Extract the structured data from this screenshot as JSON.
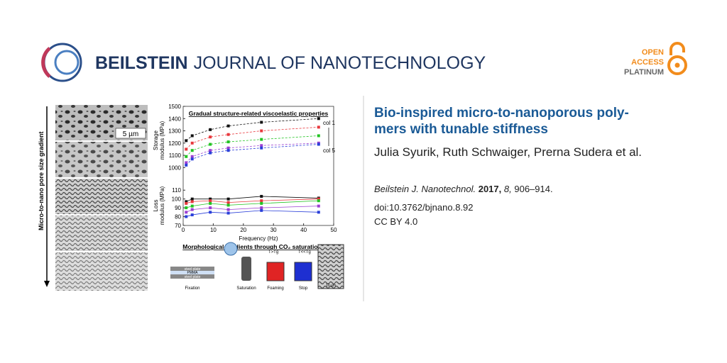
{
  "header": {
    "brand_bold": "BEILSTEIN",
    "brand_light": "JOURNAL OF NANOTECHNOLOGY",
    "badge": [
      "OPEN",
      "ACCESS",
      "PLATINUM"
    ]
  },
  "article": {
    "title_lines": [
      "Bio-inspired micro-to-nanoporous poly-",
      "mers with tunable stiffness"
    ],
    "authors": "Julia Syurik, Ruth Schwaiger, Prerna Sudera et al.",
    "citation": {
      "journal": "Beilstein J. Nanotechnol.",
      "year": "2017,",
      "volume": "8,",
      "pages": "906–914."
    },
    "doi": "doi:10.3762/bjnano.8.92",
    "license": "CC BY 4.0"
  },
  "figure": {
    "gradient_label": "Micro-to-nano pore size gradient",
    "scale_bar": "5 µm",
    "plot": {
      "title": "Gradual structure-related viscoelastic properties",
      "xlabel": "Frequency (Hz)",
      "storage_label": [
        "Storage",
        "modulus (MPa)"
      ],
      "loss_label": [
        "Loss",
        "modulus (MPa)"
      ],
      "col_first": "col 1",
      "col_last": "col 5",
      "x": [
        1,
        3,
        9,
        15,
        26,
        45
      ],
      "xlim": [
        0,
        50
      ],
      "xticks": [
        0,
        10,
        20,
        30,
        40,
        50
      ],
      "storage_ylim": [
        950,
        1500
      ],
      "storage_yticks": [
        1000,
        1100,
        1200,
        1300,
        1400,
        1500
      ],
      "loss_ylim": [
        70,
        115
      ],
      "loss_yticks": [
        70,
        80,
        90,
        100,
        110
      ],
      "series": [
        {
          "color": "#111111",
          "storage": [
            1220,
            1260,
            1310,
            1340,
            1370,
            1400
          ],
          "loss": [
            97,
            100,
            100,
            100,
            103,
            101
          ]
        },
        {
          "color": "#e8383d",
          "storage": [
            1150,
            1200,
            1250,
            1270,
            1300,
            1330
          ],
          "loss": [
            95,
            97,
            98,
            96,
            98,
            100
          ]
        },
        {
          "color": "#22c422",
          "storage": [
            1090,
            1140,
            1190,
            1210,
            1230,
            1260
          ],
          "loss": [
            90,
            92,
            95,
            93,
            95,
            98
          ]
        },
        {
          "color": "#9b3fd1",
          "storage": [
            1040,
            1090,
            1140,
            1160,
            1180,
            1200
          ],
          "loss": [
            85,
            88,
            90,
            88,
            90,
            92
          ]
        },
        {
          "color": "#2a3fd9",
          "storage": [
            1020,
            1070,
            1120,
            1140,
            1160,
            1190
          ],
          "loss": [
            80,
            82,
            85,
            84,
            87,
            85
          ]
        }
      ]
    },
    "process": {
      "title": "Morphological gradients through CO₂ saturation",
      "layers": [
        "steel plate",
        "PMMA",
        "steel plate"
      ],
      "steps": [
        "Fixation",
        "Saturation",
        "Foaming",
        "Stop"
      ],
      "conditions": [
        "T>Tg",
        "T<<Tg"
      ],
      "scale_bar": "10 µm"
    }
  }
}
